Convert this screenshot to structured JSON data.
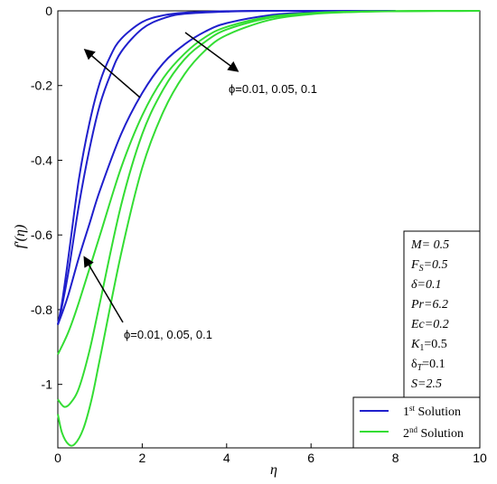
{
  "chart_data": {
    "type": "line",
    "xlabel": "η",
    "ylabel": "f′(η)",
    "xlim": [
      0,
      10
    ],
    "ylim": [
      -1.17,
      0.0
    ],
    "x_ticks": [
      "0",
      "2",
      "4",
      "6",
      "8",
      "10"
    ],
    "y_ticks": [
      "0",
      "-0.2",
      "-0.4",
      "-0.6",
      "-0.8",
      "-1"
    ],
    "series": [
      {
        "group": "1st Solution",
        "color": "#1f1fcc",
        "x": [
          0,
          0.1,
          0.25,
          0.5,
          0.75,
          1.0,
          1.25,
          1.5,
          2.0,
          2.5,
          3.0,
          4.0,
          5.0,
          6.0,
          7.0,
          8.0
        ],
        "y": [
          -0.84,
          -0.78,
          -0.66,
          -0.45,
          -0.3,
          -0.19,
          -0.12,
          -0.075,
          -0.03,
          -0.012,
          -0.005,
          -0.001,
          0,
          0,
          0,
          0
        ]
      },
      {
        "group": "1st Solution",
        "color": "#1f1fcc",
        "x": [
          0,
          0.1,
          0.25,
          0.5,
          0.75,
          1.0,
          1.25,
          1.5,
          2.0,
          2.5,
          3.0,
          4.0,
          5.0,
          6.0,
          7.0,
          8.0
        ],
        "y": [
          -0.84,
          -0.79,
          -0.7,
          -0.52,
          -0.37,
          -0.25,
          -0.17,
          -0.11,
          -0.048,
          -0.02,
          -0.008,
          -0.002,
          0,
          0,
          0,
          0
        ]
      },
      {
        "group": "1st Solution",
        "color": "#1f1fcc",
        "x": [
          0,
          0.1,
          0.25,
          0.5,
          0.75,
          1.0,
          1.5,
          2.0,
          2.5,
          3.0,
          3.5,
          4.0,
          5.0,
          6.0,
          7.0,
          8.0
        ],
        "y": [
          -0.84,
          -0.81,
          -0.76,
          -0.66,
          -0.57,
          -0.48,
          -0.33,
          -0.22,
          -0.14,
          -0.09,
          -0.055,
          -0.033,
          -0.012,
          -0.004,
          -0.001,
          0
        ]
      },
      {
        "group": "2nd Solution",
        "color": "#33dd33",
        "x": [
          0,
          0.25,
          0.5,
          1.0,
          1.5,
          2.0,
          2.5,
          3.0,
          3.5,
          4.0,
          5.0,
          6.0,
          7.0,
          8.0,
          9.0,
          10.0
        ],
        "y": [
          -0.92,
          -0.86,
          -0.78,
          -0.6,
          -0.42,
          -0.28,
          -0.18,
          -0.115,
          -0.07,
          -0.043,
          -0.016,
          -0.006,
          -0.002,
          -0.001,
          0,
          0
        ]
      },
      {
        "group": "2nd Solution",
        "color": "#33dd33",
        "x": [
          0,
          0.15,
          0.3,
          0.5,
          0.75,
          1.0,
          1.5,
          2.0,
          2.5,
          3.0,
          3.5,
          4.0,
          5.0,
          6.0,
          7.0,
          8.0,
          10.0
        ],
        "y": [
          -1.04,
          -1.06,
          -1.05,
          -1.01,
          -0.91,
          -0.78,
          -0.52,
          -0.33,
          -0.21,
          -0.13,
          -0.082,
          -0.05,
          -0.019,
          -0.007,
          -0.003,
          -0.001,
          0
        ]
      },
      {
        "group": "2nd Solution",
        "color": "#33dd33",
        "x": [
          0,
          0.1,
          0.25,
          0.4,
          0.6,
          0.8,
          1.0,
          1.5,
          2.0,
          2.5,
          3.0,
          3.5,
          4.0,
          5.0,
          6.0,
          7.0,
          8.0,
          10.0
        ],
        "y": [
          -1.08,
          -1.13,
          -1.16,
          -1.16,
          -1.12,
          -1.04,
          -0.93,
          -0.65,
          -0.42,
          -0.27,
          -0.17,
          -0.105,
          -0.065,
          -0.025,
          -0.009,
          -0.003,
          -0.001,
          0
        ]
      }
    ],
    "annotations": [
      {
        "text": "ϕ=0.01, 0.05, 0.1",
        "near": "upper arrow, right"
      },
      {
        "text": "ϕ=0.01, 0.05, 0.1",
        "near": "lower arrow, bottom"
      }
    ],
    "parameters": [
      "M= 0.5",
      "FS=0.5",
      "δ=0.1",
      "Pr=6.2",
      "Ec=0.2",
      "K1=0.5",
      "δT=0.1",
      "S=2.5"
    ],
    "legend": {
      "placement": "bottom-right",
      "entries": [
        {
          "label": "1st Solution",
          "color": "#1f1fcc"
        },
        {
          "label": "2nd Solution",
          "color": "#33dd33"
        }
      ]
    }
  }
}
